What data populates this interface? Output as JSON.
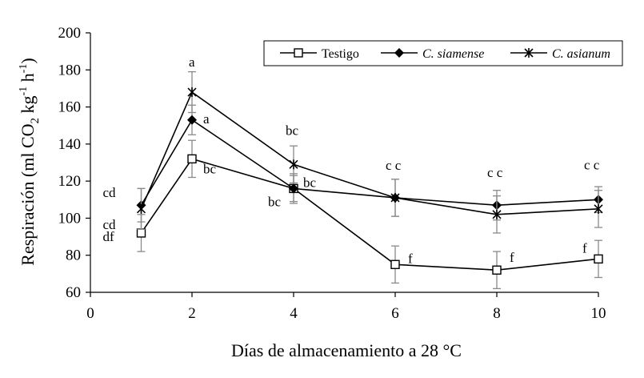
{
  "chart_data": {
    "type": "line",
    "xlabel": "Días de almacenamiento a 28 °C",
    "ylabel_parts": {
      "a": "Respiración (ml CO",
      "b": "2",
      "c": " kg",
      "d": "-1",
      "e": " h",
      "f": "-1",
      "g": ")"
    },
    "xlim": [
      0,
      10
    ],
    "ylim": [
      60,
      200
    ],
    "x_ticks": [
      0,
      2,
      4,
      6,
      8,
      10
    ],
    "y_ticks": [
      60,
      80,
      100,
      120,
      140,
      160,
      180,
      200
    ],
    "grid": false,
    "legend_position": "top-right",
    "series": [
      {
        "name": "Testigo",
        "marker": "open-square",
        "italic": false,
        "x": [
          1,
          2,
          4,
          6,
          8,
          10
        ],
        "y": [
          92,
          132,
          116,
          75,
          72,
          78
        ],
        "err": [
          10,
          10,
          7,
          10,
          10,
          10
        ]
      },
      {
        "name": "C. siamense",
        "marker": "filled-diamond",
        "italic": true,
        "x": [
          1,
          2,
          4,
          6,
          8,
          10
        ],
        "y": [
          107,
          153,
          116,
          111,
          107,
          110
        ],
        "err": [
          9,
          8,
          8,
          10,
          8,
          7
        ]
      },
      {
        "name": "C. asianum",
        "marker": "asterisk",
        "italic": true,
        "x": [
          1,
          2,
          4,
          6,
          8,
          10
        ],
        "y": [
          105,
          168,
          129,
          111,
          102,
          105
        ],
        "err": [
          11,
          11,
          10,
          10,
          10,
          10
        ]
      }
    ],
    "annotations": [
      {
        "x": 1,
        "y": 107,
        "dx": -48,
        "dy": -10,
        "text": "cd"
      },
      {
        "x": 1,
        "y": 105,
        "dx": -48,
        "dy": 25,
        "text": "cd"
      },
      {
        "x": 1,
        "y": 92,
        "dx": -48,
        "dy": 10,
        "text": "df"
      },
      {
        "x": 2,
        "y": 168,
        "dx": -4,
        "dy": -32,
        "text": "a"
      },
      {
        "x": 2,
        "y": 153,
        "dx": 14,
        "dy": 4,
        "text": "a"
      },
      {
        "x": 2,
        "y": 132,
        "dx": 14,
        "dy": 18,
        "text": "bc"
      },
      {
        "x": 4,
        "y": 129,
        "dx": -10,
        "dy": -37,
        "text": "bc"
      },
      {
        "x": 4,
        "y": 116,
        "dx": -32,
        "dy": 22,
        "text": "bc"
      },
      {
        "x": 4,
        "y": 116,
        "dx": 12,
        "dy": -2,
        "text": "bc"
      },
      {
        "x": 6,
        "y": 111,
        "dx": -12,
        "dy": -35,
        "text": "c c"
      },
      {
        "x": 6,
        "y": 75,
        "dx": 16,
        "dy": -2,
        "text": "f"
      },
      {
        "x": 8,
        "y": 107,
        "dx": -12,
        "dy": -35,
        "text": "c c"
      },
      {
        "x": 8,
        "y": 72,
        "dx": 16,
        "dy": -10,
        "text": "f"
      },
      {
        "x": 10,
        "y": 110,
        "dx": -18,
        "dy": -38,
        "text": "c c"
      },
      {
        "x": 10,
        "y": 78,
        "dx": -20,
        "dy": -8,
        "text": "f"
      }
    ]
  }
}
